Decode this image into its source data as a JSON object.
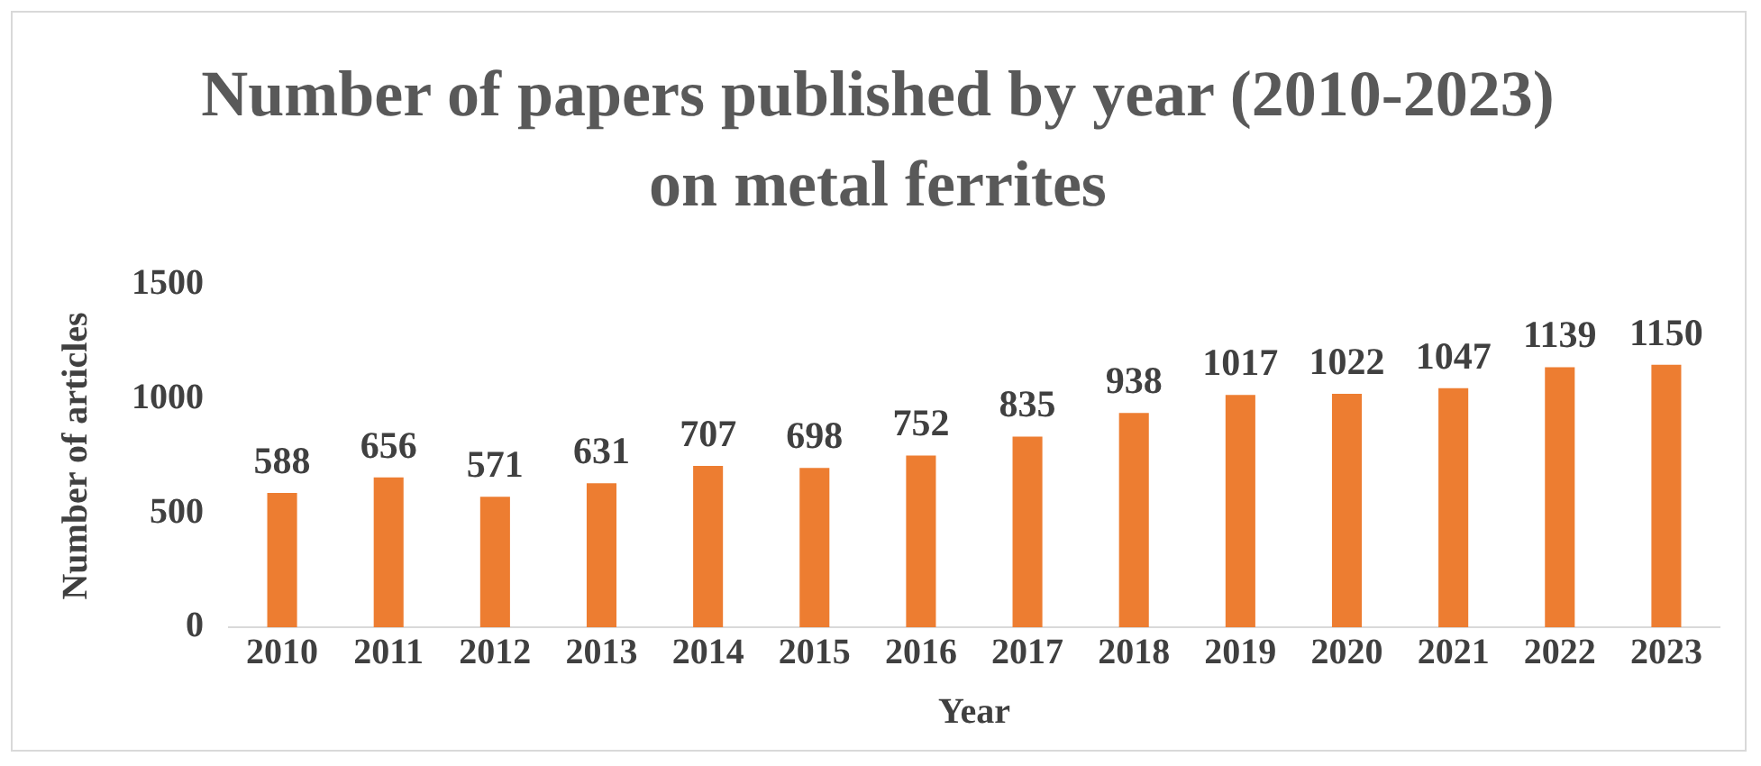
{
  "chart_data": {
    "type": "bar",
    "title": "Number of papers published by year (2010-2023) on metal ferrites",
    "xlabel": "Year",
    "ylabel": "Number of articles",
    "categories": [
      "2010",
      "2011",
      "2012",
      "2013",
      "2014",
      "2015",
      "2016",
      "2017",
      "2018",
      "2019",
      "2020",
      "2021",
      "2022",
      "2023"
    ],
    "values": [
      588,
      656,
      571,
      631,
      707,
      698,
      752,
      835,
      938,
      1017,
      1022,
      1047,
      1139,
      1150
    ],
    "color": "#ed7d31",
    "ylim": [
      0,
      1500
    ],
    "yticks": [
      0,
      500,
      1000,
      1500
    ],
    "grid": false,
    "data_labels": true
  }
}
